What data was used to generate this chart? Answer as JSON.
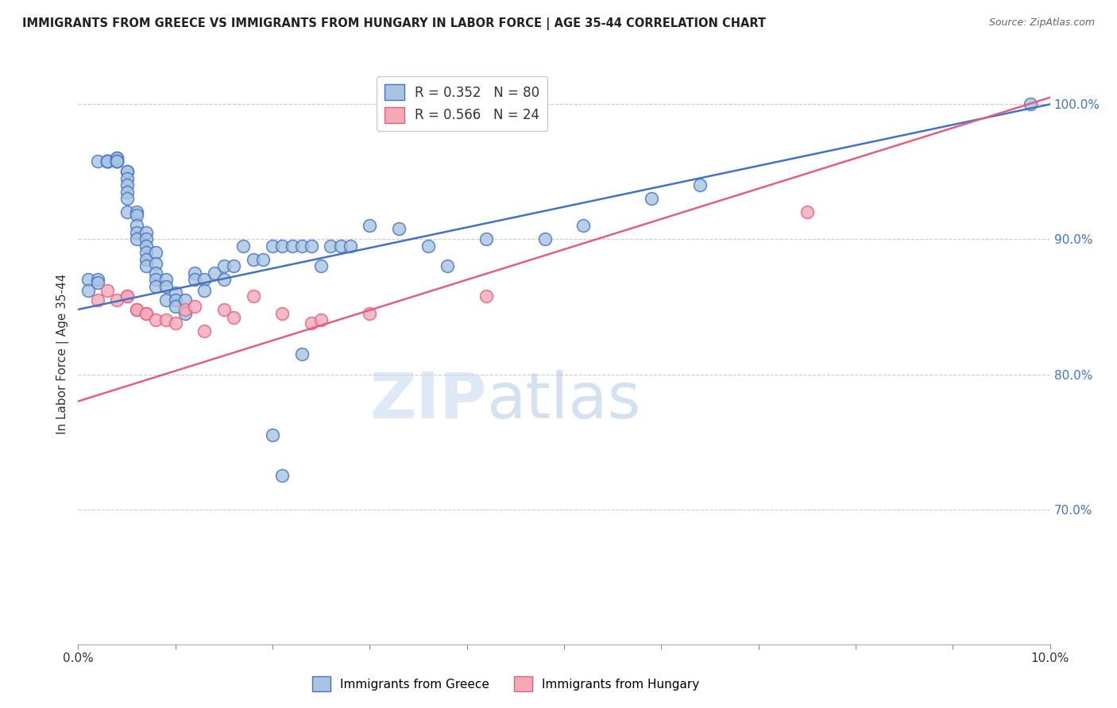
{
  "title": "IMMIGRANTS FROM GREECE VS IMMIGRANTS FROM HUNGARY IN LABOR FORCE | AGE 35-44 CORRELATION CHART",
  "source": "Source: ZipAtlas.com",
  "ylabel": "In Labor Force | Age 35-44",
  "xlim": [
    0.0,
    0.1
  ],
  "ylim": [
    0.6,
    1.03
  ],
  "xticks": [
    0.0,
    0.01,
    0.02,
    0.03,
    0.04,
    0.05,
    0.06,
    0.07,
    0.08,
    0.09,
    0.1
  ],
  "xticklabels": [
    "0.0%",
    "",
    "",
    "",
    "",
    "",
    "",
    "",
    "",
    "",
    "10.0%"
  ],
  "yticks_right": [
    0.7,
    0.8,
    0.9,
    1.0
  ],
  "ytick_right_labels": [
    "70.0%",
    "80.0%",
    "90.0%",
    "100.0%"
  ],
  "greece_R": 0.352,
  "greece_N": 80,
  "hungary_R": 0.566,
  "hungary_N": 24,
  "greece_color": "#a8c4e0",
  "hungary_color": "#f4a8b8",
  "greece_line_color": "#4472c4",
  "hungary_line_color": "#e06080",
  "watermark_zip": "ZIP",
  "watermark_atlas": "atlas",
  "greece_trend_x": [
    0.0,
    0.1
  ],
  "greece_trend_y": [
    0.848,
    1.0
  ],
  "hungary_trend_x": [
    0.0,
    0.1
  ],
  "hungary_trend_y": [
    0.78,
    1.005
  ],
  "greece_x": [
    0.001,
    0.001,
    0.002,
    0.002,
    0.002,
    0.003,
    0.003,
    0.003,
    0.003,
    0.003,
    0.004,
    0.004,
    0.004,
    0.004,
    0.004,
    0.004,
    0.005,
    0.005,
    0.005,
    0.005,
    0.005,
    0.005,
    0.005,
    0.006,
    0.006,
    0.006,
    0.006,
    0.006,
    0.007,
    0.007,
    0.007,
    0.007,
    0.007,
    0.007,
    0.008,
    0.008,
    0.008,
    0.008,
    0.008,
    0.009,
    0.009,
    0.009,
    0.01,
    0.01,
    0.01,
    0.011,
    0.011,
    0.012,
    0.012,
    0.013,
    0.013,
    0.014,
    0.015,
    0.015,
    0.016,
    0.017,
    0.018,
    0.019,
    0.02,
    0.021,
    0.022,
    0.023,
    0.024,
    0.025,
    0.026,
    0.027,
    0.028,
    0.03,
    0.033,
    0.036,
    0.038,
    0.042,
    0.048,
    0.052,
    0.02,
    0.021,
    0.023,
    0.059,
    0.064,
    0.098
  ],
  "greece_y": [
    0.87,
    0.862,
    0.87,
    0.868,
    0.958,
    0.958,
    0.958,
    0.958,
    0.958,
    0.958,
    0.958,
    0.958,
    0.96,
    0.96,
    0.958,
    0.958,
    0.95,
    0.95,
    0.945,
    0.94,
    0.935,
    0.93,
    0.92,
    0.92,
    0.918,
    0.91,
    0.905,
    0.9,
    0.905,
    0.9,
    0.895,
    0.89,
    0.885,
    0.88,
    0.89,
    0.882,
    0.875,
    0.87,
    0.865,
    0.87,
    0.865,
    0.855,
    0.86,
    0.855,
    0.85,
    0.855,
    0.845,
    0.875,
    0.87,
    0.87,
    0.862,
    0.875,
    0.88,
    0.87,
    0.88,
    0.895,
    0.885,
    0.885,
    0.895,
    0.895,
    0.895,
    0.895,
    0.895,
    0.88,
    0.895,
    0.895,
    0.895,
    0.91,
    0.908,
    0.895,
    0.88,
    0.9,
    0.9,
    0.91,
    0.755,
    0.725,
    0.815,
    0.93,
    0.94,
    1.0
  ],
  "hungary_x": [
    0.002,
    0.003,
    0.004,
    0.005,
    0.005,
    0.006,
    0.006,
    0.007,
    0.007,
    0.008,
    0.009,
    0.01,
    0.011,
    0.012,
    0.013,
    0.015,
    0.016,
    0.018,
    0.021,
    0.024,
    0.025,
    0.03,
    0.042,
    0.075
  ],
  "hungary_y": [
    0.855,
    0.862,
    0.855,
    0.858,
    0.858,
    0.848,
    0.848,
    0.845,
    0.845,
    0.84,
    0.84,
    0.838,
    0.848,
    0.85,
    0.832,
    0.848,
    0.842,
    0.858,
    0.845,
    0.838,
    0.84,
    0.845,
    0.858,
    0.92
  ]
}
